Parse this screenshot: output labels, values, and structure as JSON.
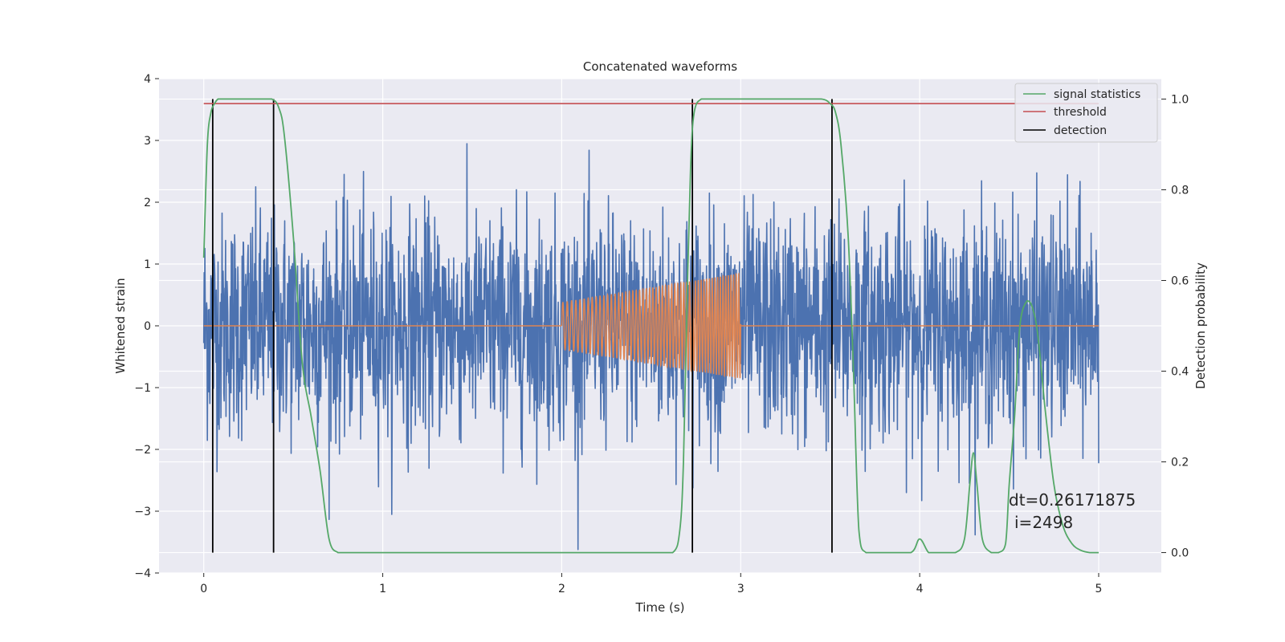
{
  "chart_data": {
    "type": "line",
    "title": "Concatenated waveforms",
    "xlabel": "Time (s)",
    "ylabel": "Whitened strain",
    "y2label": "Detection probability",
    "xlim": [
      -0.25,
      5.35
    ],
    "ylim": [
      -4.0,
      4.0
    ],
    "y2lim": [
      -0.045,
      1.045
    ],
    "xticks": [
      0,
      1,
      2,
      3,
      4,
      5
    ],
    "yticks": [
      -4,
      -3,
      -2,
      -1,
      0,
      1,
      2,
      3,
      4
    ],
    "y2ticks": [
      0.0,
      0.2,
      0.4,
      0.6,
      0.8,
      1.0
    ],
    "grid": true,
    "legend_position": "top-right",
    "colors": {
      "strain": "#4c72b0",
      "injection": "#dd8452",
      "signal": "#55a868",
      "threshold": "#c44e52",
      "detection": "#000000",
      "background": "#eaeaf2",
      "grid": "#ffffff"
    },
    "legend": [
      "signal statistics",
      "threshold",
      "detection"
    ],
    "strain_noise": {
      "x_range": [
        0,
        5
      ],
      "sigma": 0.9,
      "peak_abs": 3.7
    },
    "injection": {
      "x_range": [
        2.0,
        3.0
      ],
      "amplitude_start": 0.38,
      "amplitude_end": 0.85,
      "frequency_start_hz": 40,
      "frequency_end_hz": 70
    },
    "threshold": {
      "value": 0.99,
      "x_range": [
        0,
        5
      ]
    },
    "detections": [
      0.05,
      0.39,
      2.73,
      3.51
    ],
    "signal_statistics": {
      "x": [
        0.0,
        0.02,
        0.04,
        0.06,
        0.08,
        0.1,
        0.2,
        0.3,
        0.38,
        0.42,
        0.45,
        0.5,
        0.55,
        0.6,
        0.65,
        0.7,
        0.75,
        0.8,
        1.0,
        1.5,
        2.0,
        2.5,
        2.62,
        2.66,
        2.68,
        2.7,
        2.72,
        2.74,
        2.78,
        2.85,
        3.0,
        3.3,
        3.45,
        3.5,
        3.53,
        3.56,
        3.6,
        3.63,
        3.66,
        3.7,
        3.8,
        3.95,
        4.0,
        4.05,
        4.1,
        4.2,
        4.25,
        4.28,
        4.3,
        4.32,
        4.35,
        4.4,
        4.44,
        4.48,
        4.5,
        4.53,
        4.56,
        4.6,
        4.63,
        4.66,
        4.7,
        4.75,
        4.8,
        4.85,
        4.9,
        4.95,
        5.0
      ],
      "y": [
        0.65,
        0.9,
        0.97,
        0.99,
        1.0,
        1.0,
        1.0,
        1.0,
        1.0,
        0.98,
        0.92,
        0.7,
        0.42,
        0.3,
        0.18,
        0.03,
        0.0,
        0.0,
        0.0,
        0.0,
        0.0,
        0.0,
        0.0,
        0.05,
        0.2,
        0.55,
        0.85,
        0.97,
        1.0,
        1.0,
        1.0,
        1.0,
        1.0,
        0.99,
        0.97,
        0.9,
        0.7,
        0.4,
        0.05,
        0.0,
        0.0,
        0.0,
        0.03,
        0.0,
        0.0,
        0.0,
        0.03,
        0.15,
        0.22,
        0.15,
        0.03,
        0.0,
        0.0,
        0.02,
        0.15,
        0.3,
        0.5,
        0.555,
        0.54,
        0.48,
        0.32,
        0.15,
        0.06,
        0.02,
        0.005,
        0.0,
        0.0
      ]
    },
    "annotation": {
      "line1": "dt=0.26171875",
      "line2": "i=2498"
    }
  }
}
